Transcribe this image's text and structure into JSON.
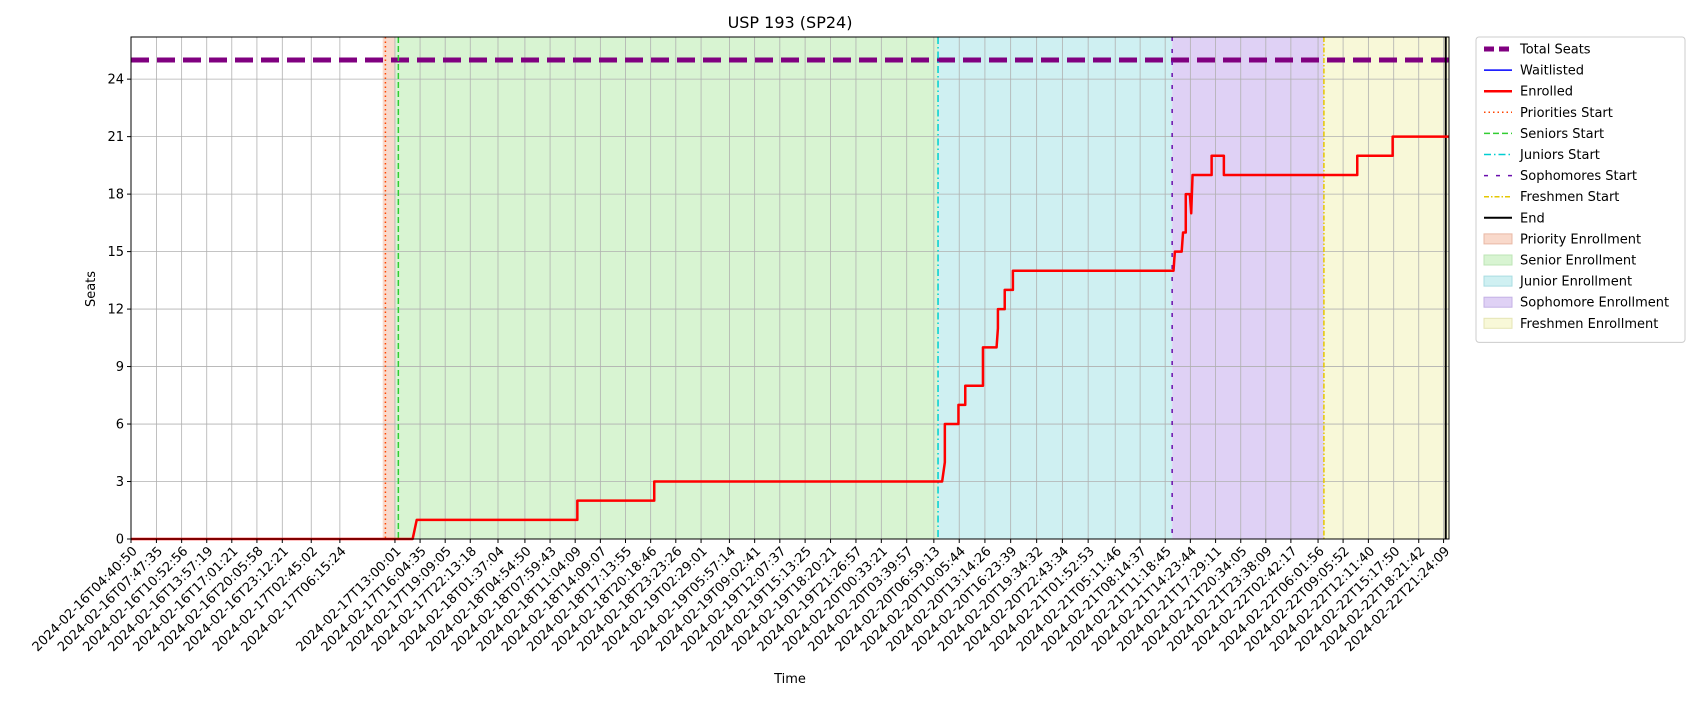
{
  "chart_data": {
    "type": "line",
    "title": "USP 193 (SP24)",
    "xlabel": "Time",
    "ylabel": "Seats",
    "ylim": [
      0,
      26.2
    ],
    "yticks": [
      0,
      3,
      6,
      9,
      12,
      15,
      18,
      21,
      24
    ],
    "grid": true,
    "legend_position": "outside-right",
    "xlim": [
      "2024-02-16T04:40:50",
      "2024-02-22T22:04:00"
    ],
    "xticks": [
      "2024-02-16T04:40:50",
      "2024-02-16T07:47:35",
      "2024-02-16T10:52:56",
      "2024-02-16T13:57:19",
      "2024-02-16T17:01:21",
      "2024-02-16T20:05:58",
      "2024-02-16T23:12:21",
      "2024-02-17T02:45:02",
      "2024-02-17T06:15:24",
      "2024-02-17T13:00:01",
      "2024-02-17T16:04:35",
      "2024-02-17T19:09:05",
      "2024-02-17T22:13:18",
      "2024-02-18T01:37:04",
      "2024-02-18T04:54:50",
      "2024-02-18T07:59:43",
      "2024-02-18T11:04:09",
      "2024-02-18T14:09:07",
      "2024-02-18T17:13:55",
      "2024-02-18T20:18:46",
      "2024-02-18T23:23:26",
      "2024-02-19T02:29:01",
      "2024-02-19T05:57:14",
      "2024-02-19T09:02:41",
      "2024-02-19T12:07:37",
      "2024-02-19T15:13:25",
      "2024-02-19T18:20:21",
      "2024-02-19T21:26:57",
      "2024-02-20T00:33:21",
      "2024-02-20T03:39:57",
      "2024-02-20T06:59:13",
      "2024-02-20T10:05:44",
      "2024-02-20T13:14:26",
      "2024-02-20T16:23:39",
      "2024-02-20T19:34:32",
      "2024-02-20T22:43:34",
      "2024-02-21T01:52:53",
      "2024-02-21T05:11:46",
      "2024-02-21T08:14:37",
      "2024-02-21T11:18:45",
      "2024-02-21T14:23:44",
      "2024-02-21T17:29:11",
      "2024-02-21T20:34:05",
      "2024-02-21T23:38:09",
      "2024-02-22T02:42:17",
      "2024-02-22T06:01:56",
      "2024-02-22T09:05:52",
      "2024-02-22T12:11:40",
      "2024-02-22T15:17:50",
      "2024-02-22T18:21:42",
      "2024-02-22T21:24:09"
    ],
    "total_seats": 25,
    "enrolled": [
      [
        "2024-02-16T04:40:50",
        0
      ],
      [
        "2024-02-17T15:10:00",
        0
      ],
      [
        "2024-02-17T15:40:00",
        1
      ],
      [
        "2024-02-18T11:20:00",
        1
      ],
      [
        "2024-02-18T11:20:01",
        2
      ],
      [
        "2024-02-18T20:45:00",
        2
      ],
      [
        "2024-02-18T20:45:01",
        3
      ],
      [
        "2024-02-20T08:00:00",
        3
      ],
      [
        "2024-02-20T08:20:00",
        4
      ],
      [
        "2024-02-20T08:20:01",
        6
      ],
      [
        "2024-02-20T10:00:00",
        6
      ],
      [
        "2024-02-20T10:00:01",
        7
      ],
      [
        "2024-02-20T10:50:00",
        7
      ],
      [
        "2024-02-20T10:50:01",
        8
      ],
      [
        "2024-02-20T13:00:00",
        8
      ],
      [
        "2024-02-20T13:00:01",
        10
      ],
      [
        "2024-02-20T14:40:00",
        10
      ],
      [
        "2024-02-20T14:50:00",
        11
      ],
      [
        "2024-02-20T14:50:01",
        12
      ],
      [
        "2024-02-20T15:40:00",
        12
      ],
      [
        "2024-02-20T15:40:01",
        13
      ],
      [
        "2024-02-20T16:40:00",
        13
      ],
      [
        "2024-02-20T16:40:01",
        14
      ],
      [
        "2024-02-21T12:20:00",
        14
      ],
      [
        "2024-02-21T12:30:00",
        15
      ],
      [
        "2024-02-21T13:20:00",
        15
      ],
      [
        "2024-02-21T13:30:00",
        16
      ],
      [
        "2024-02-21T13:50:00",
        16
      ],
      [
        "2024-02-21T13:50:01",
        18
      ],
      [
        "2024-02-21T14:20:00",
        18
      ],
      [
        "2024-02-21T14:30:00",
        17
      ],
      [
        "2024-02-21T14:40:00",
        19
      ],
      [
        "2024-02-21T17:00:00",
        19
      ],
      [
        "2024-02-21T17:00:01",
        20
      ],
      [
        "2024-02-21T18:30:00",
        20
      ],
      [
        "2024-02-21T18:30:01",
        19
      ],
      [
        "2024-02-22T10:50:00",
        19
      ],
      [
        "2024-02-22T10:50:01",
        20
      ],
      [
        "2024-02-22T15:10:00",
        20
      ],
      [
        "2024-02-22T15:10:01",
        21
      ],
      [
        "2024-02-22T22:04:00",
        21
      ]
    ],
    "waitlisted": [],
    "events": {
      "priorities_start": "2024-02-17T11:50:00",
      "seniors_start": "2024-02-17T13:25:00",
      "juniors_start": "2024-02-20T07:30:00",
      "sophomores_start": "2024-02-21T12:10:00",
      "freshmen_start": "2024-02-22T06:45:00",
      "end": "2024-02-22T21:40:00"
    },
    "regions": [
      {
        "name": "Priority Enrollment",
        "start": "2024-02-17T11:30:00",
        "end": "2024-02-17T13:00:00",
        "color": "#f9d9cb"
      },
      {
        "name": "Senior Enrollment",
        "start": "2024-02-17T13:00:00",
        "end": "2024-02-20T07:30:00",
        "color": "#d8f4d2"
      },
      {
        "name": "Junior Enrollment",
        "start": "2024-02-20T07:30:00",
        "end": "2024-02-21T12:10:00",
        "color": "#cff0f2"
      },
      {
        "name": "Sophomore Enrollment",
        "start": "2024-02-21T12:10:00",
        "end": "2024-02-22T06:45:00",
        "color": "#dfd1f5"
      },
      {
        "name": "Freshmen Enrollment",
        "start": "2024-02-22T06:45:00",
        "end": "2024-02-22T22:04:00",
        "color": "#f8f8d8"
      }
    ],
    "legend": [
      {
        "label": "Total Seats",
        "kind": "line",
        "color": "#800080",
        "width": 5,
        "dash": "10,5"
      },
      {
        "label": "Waitlisted",
        "kind": "line",
        "color": "#0000ff",
        "width": 1.5,
        "dash": ""
      },
      {
        "label": "Enrolled",
        "kind": "line",
        "color": "#ff0000",
        "width": 2.5,
        "dash": ""
      },
      {
        "label": "Priorities Start",
        "kind": "line",
        "color": "#ff4500",
        "width": 1.5,
        "dash": "1.5,3"
      },
      {
        "label": "Seniors Start",
        "kind": "line",
        "color": "#32cd32",
        "width": 1.5,
        "dash": "6,3"
      },
      {
        "label": "Juniors Start",
        "kind": "line",
        "color": "#00ced1",
        "width": 1.5,
        "dash": "7,3,1.5,3"
      },
      {
        "label": "Sophomores Start",
        "kind": "line",
        "color": "#6a0dad",
        "width": 1.5,
        "dash": "4,8"
      },
      {
        "label": "Freshmen Start",
        "kind": "line",
        "color": "#e5c700",
        "width": 1.5,
        "dash": "5,2,1.5,2"
      },
      {
        "label": "End",
        "kind": "line",
        "color": "#000000",
        "width": 2,
        "dash": ""
      },
      {
        "label": "Priority Enrollment",
        "kind": "patch",
        "color": "#f9d9cb",
        "edge": "#e8b8a5"
      },
      {
        "label": "Senior Enrollment",
        "kind": "patch",
        "color": "#d8f4d2",
        "edge": "#bde5b5"
      },
      {
        "label": "Junior Enrollment",
        "kind": "patch",
        "color": "#cff0f2",
        "edge": "#a9dde2"
      },
      {
        "label": "Sophomore Enrollment",
        "kind": "patch",
        "color": "#dfd1f5",
        "edge": "#c4b1e5"
      },
      {
        "label": "Freshmen Enrollment",
        "kind": "patch",
        "color": "#f8f8d8",
        "edge": "#e5e5b5"
      }
    ]
  }
}
